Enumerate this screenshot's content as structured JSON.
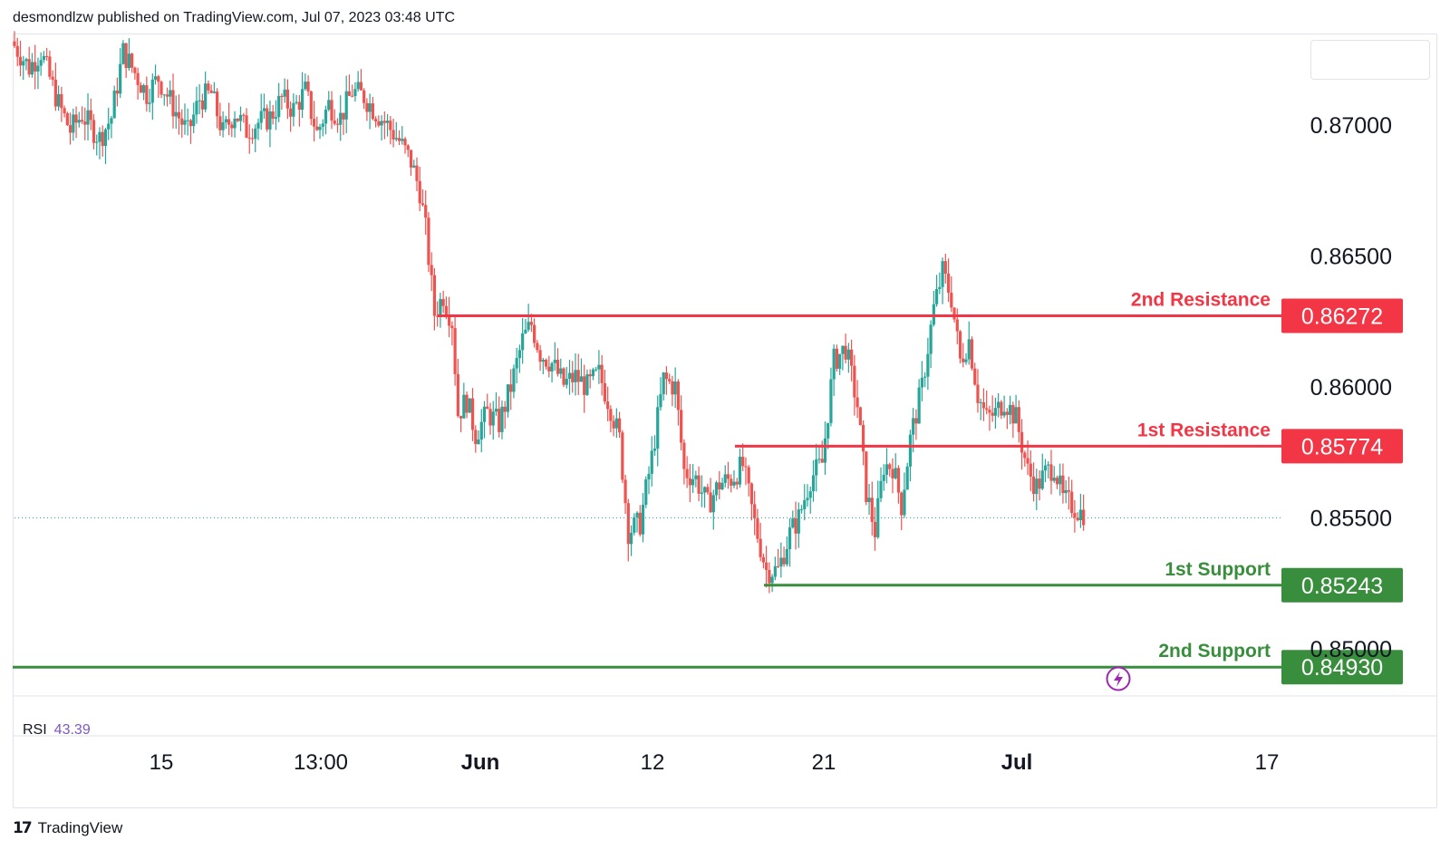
{
  "header": {
    "publisher_text": "desmondlzw published on TradingView.com, Jul 07, 2023 03:48 UTC"
  },
  "footer": {
    "brand": "TradingView",
    "logo_glyph": "17"
  },
  "indicator": {
    "name": "RSI",
    "value": "43.39"
  },
  "colors": {
    "up": "#26a69a",
    "down": "#ef5350",
    "resistance": "#f23645",
    "support": "#388e3c",
    "rsi": "#7e57c2",
    "current_price_line": "#26a69a"
  },
  "icons": {
    "alert": "lightning-icon",
    "logo": "tradingview-logo-icon"
  },
  "chart_data": {
    "type": "candlestick",
    "title": "",
    "xlabel": "",
    "ylabel": "",
    "ylim": [
      0.8482,
      0.8735
    ],
    "y_ticks": [
      "0.87000",
      "0.86500",
      "0.86000",
      "0.85500",
      "0.85000"
    ],
    "x_ticks": [
      "15",
      "13:00",
      "Jun",
      "12",
      "21",
      "Jul",
      "17"
    ],
    "x_ticks_bold": [
      "Jun",
      "Jul"
    ],
    "current_price": 0.855,
    "levels": [
      {
        "name": "2nd Resistance",
        "value": 0.86272,
        "label": "0.86272",
        "kind": "resistance",
        "extent": "partial"
      },
      {
        "name": "1st Resistance",
        "value": 0.85774,
        "label": "0.85774",
        "kind": "resistance",
        "extent": "partial"
      },
      {
        "name": "1st Support",
        "value": 0.85243,
        "label": "0.85243",
        "kind": "support",
        "extent": "partial"
      },
      {
        "name": "2nd Support",
        "value": 0.8493,
        "label": "0.84930",
        "kind": "support",
        "extent": "full"
      }
    ],
    "path": [
      [
        0,
        0.8732
      ],
      [
        6,
        0.8722
      ],
      [
        10,
        0.8728
      ],
      [
        16,
        0.8708
      ],
      [
        20,
        0.8698
      ],
      [
        24,
        0.8704
      ],
      [
        30,
        0.8695
      ],
      [
        34,
        0.8703
      ],
      [
        38,
        0.8728
      ],
      [
        42,
        0.872
      ],
      [
        46,
        0.8712
      ],
      [
        50,
        0.8718
      ],
      [
        56,
        0.8705
      ],
      [
        60,
        0.8697
      ],
      [
        64,
        0.871
      ],
      [
        68,
        0.8712
      ],
      [
        72,
        0.8697
      ],
      [
        76,
        0.8705
      ],
      [
        80,
        0.8698
      ],
      [
        84,
        0.8701
      ],
      [
        88,
        0.8703
      ],
      [
        92,
        0.871
      ],
      [
        96,
        0.8706
      ],
      [
        100,
        0.8713
      ],
      [
        104,
        0.8697
      ],
      [
        108,
        0.8708
      ],
      [
        112,
        0.8703
      ],
      [
        116,
        0.8713
      ],
      [
        120,
        0.8711
      ],
      [
        124,
        0.8705
      ],
      [
        128,
        0.87
      ],
      [
        132,
        0.8694
      ],
      [
        136,
        0.8686
      ],
      [
        139,
        0.8675
      ],
      [
        141,
        0.866
      ],
      [
        144,
        0.8628
      ],
      [
        147,
        0.8635
      ],
      [
        150,
        0.8625
      ],
      [
        152,
        0.859
      ],
      [
        155,
        0.8595
      ],
      [
        158,
        0.8582
      ],
      [
        162,
        0.859
      ],
      [
        166,
        0.8586
      ],
      [
        170,
        0.86
      ],
      [
        174,
        0.8618
      ],
      [
        177,
        0.8624
      ],
      [
        180,
        0.8613
      ],
      [
        184,
        0.8609
      ],
      [
        188,
        0.8601
      ],
      [
        192,
        0.8604
      ],
      [
        196,
        0.86
      ],
      [
        200,
        0.8605
      ],
      [
        204,
        0.8592
      ],
      [
        207,
        0.858
      ],
      [
        210,
        0.8545
      ],
      [
        214,
        0.8548
      ],
      [
        218,
        0.8573
      ],
      [
        222,
        0.8603
      ],
      [
        226,
        0.86
      ],
      [
        229,
        0.8568
      ],
      [
        233,
        0.8565
      ],
      [
        237,
        0.8555
      ],
      [
        241,
        0.8563
      ],
      [
        245,
        0.8565
      ],
      [
        249,
        0.857
      ],
      [
        253,
        0.8548
      ],
      [
        257,
        0.853
      ],
      [
        261,
        0.853
      ],
      [
        265,
        0.8544
      ],
      [
        268,
        0.855
      ],
      [
        272,
        0.8565
      ],
      [
        276,
        0.8571
      ],
      [
        280,
        0.861
      ],
      [
        284,
        0.8615
      ],
      [
        288,
        0.8593
      ],
      [
        291,
        0.856
      ],
      [
        294,
        0.8545
      ],
      [
        297,
        0.857
      ],
      [
        300,
        0.857
      ],
      [
        303,
        0.8555
      ],
      [
        306,
        0.858
      ],
      [
        310,
        0.86
      ],
      [
        314,
        0.863
      ],
      [
        317,
        0.8644
      ],
      [
        320,
        0.8634
      ],
      [
        323,
        0.861
      ],
      [
        326,
        0.8618
      ],
      [
        329,
        0.8597
      ],
      [
        332,
        0.8588
      ],
      [
        335,
        0.859
      ],
      [
        338,
        0.8595
      ],
      [
        342,
        0.8588
      ],
      [
        346,
        0.8568
      ],
      [
        349,
        0.8562
      ],
      [
        352,
        0.8567
      ],
      [
        355,
        0.857
      ],
      [
        358,
        0.8557
      ],
      [
        361,
        0.8555
      ],
      [
        364,
        0.8552
      ]
    ],
    "x_max": 432
  }
}
